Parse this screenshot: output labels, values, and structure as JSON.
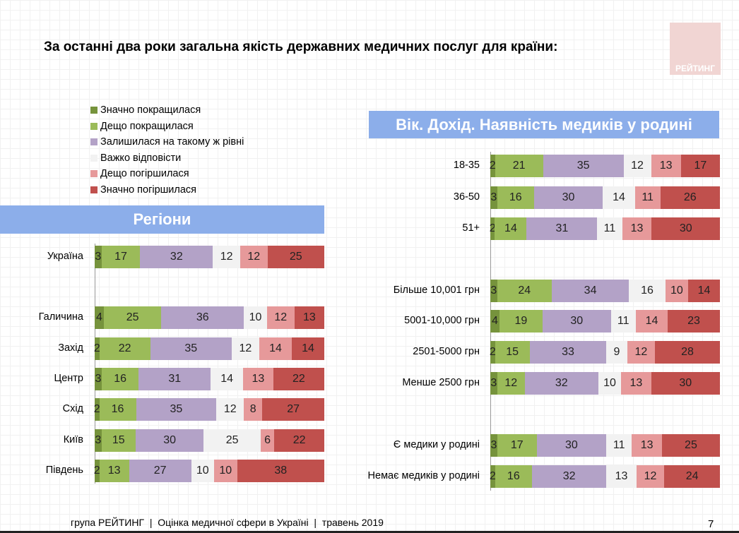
{
  "title": "За останні два роки загальна якість державних медичних послуг для країни:",
  "logo_text": "РЕЙТИНГ",
  "footer": "група РЕЙТИНГ  |  Оцінка медичної сфери в Україні  |  травень 2019",
  "page_number": "7",
  "chart_data": [
    {
      "type": "stacked-bar-horizontal",
      "title": "Регіони",
      "legend_placement": "top-left",
      "series": [
        {
          "name": "Значно покращилася",
          "color": "#76933c"
        },
        {
          "name": "Дещо покращилася",
          "color": "#9bbb59"
        },
        {
          "name": "Залишилася на такому ж рівні",
          "color": "#b3a2c7"
        },
        {
          "name": "Важко відповісти",
          "color": "#f2f2f2"
        },
        {
          "name": "Дещо погіршилася",
          "color": "#e6999a"
        },
        {
          "name": "Значно погіршилася",
          "color": "#c0504d"
        }
      ],
      "rows": [
        {
          "label": "Україна",
          "values": [
            3,
            17,
            32,
            12,
            12,
            25
          ]
        },
        {
          "label": "Галичина",
          "values": [
            4,
            25,
            36,
            10,
            12,
            13
          ]
        },
        {
          "label": "Захід",
          "values": [
            2,
            22,
            35,
            12,
            14,
            14
          ]
        },
        {
          "label": "Центр",
          "values": [
            3,
            16,
            31,
            14,
            13,
            22
          ]
        },
        {
          "label": "Схід",
          "values": [
            2,
            16,
            35,
            12,
            8,
            27
          ]
        },
        {
          "label": "Київ",
          "values": [
            3,
            15,
            30,
            25,
            6,
            22
          ]
        },
        {
          "label": "Південь",
          "values": [
            2,
            13,
            27,
            10,
            10,
            38
          ]
        }
      ]
    },
    {
      "type": "stacked-bar-horizontal",
      "title": "Вік. Дохід. Наявність медиків у родині",
      "rows": [
        {
          "label": "18-35",
          "values": [
            2,
            21,
            35,
            12,
            13,
            17
          ]
        },
        {
          "label": "36-50",
          "values": [
            3,
            16,
            30,
            14,
            11,
            26
          ]
        },
        {
          "label": "51+",
          "values": [
            2,
            14,
            31,
            11,
            13,
            30
          ]
        },
        {
          "label": "Більше 10,001 грн",
          "values": [
            3,
            24,
            34,
            16,
            10,
            14
          ]
        },
        {
          "label": "5001-10,000 грн",
          "values": [
            4,
            19,
            30,
            11,
            14,
            23
          ]
        },
        {
          "label": "2501-5000 грн",
          "values": [
            2,
            15,
            33,
            9,
            12,
            28
          ]
        },
        {
          "label": "Менше 2500 грн",
          "values": [
            3,
            12,
            32,
            10,
            13,
            30
          ]
        },
        {
          "label": "Є медики у родині",
          "values": [
            3,
            17,
            30,
            11,
            13,
            25
          ]
        },
        {
          "label": "Немає медиків у родині",
          "values": [
            2,
            16,
            32,
            13,
            12,
            24
          ]
        }
      ]
    }
  ]
}
